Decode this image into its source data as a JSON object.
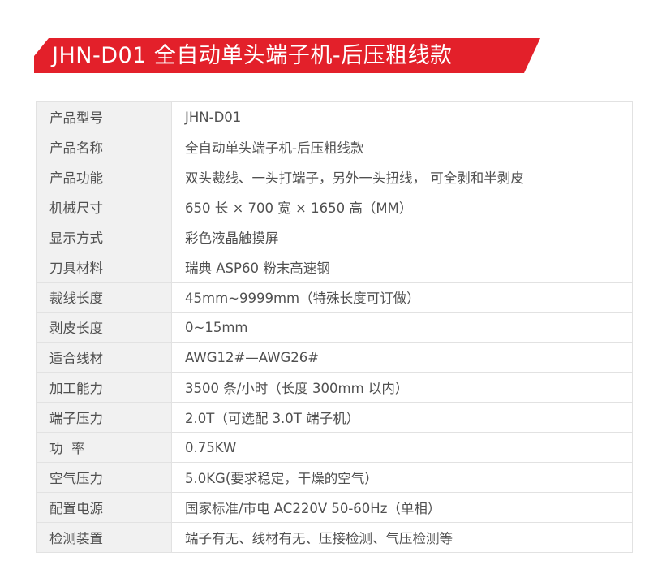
{
  "title": "JHN-D01 全自动单头端子机-后压粗线款",
  "brand_color": "#e3202a",
  "specs": [
    {
      "label": "产品型号",
      "value": "JHN-D01"
    },
    {
      "label": "产品名称",
      "value": "全自动单头端子机-后压粗线款"
    },
    {
      "label": "产品功能",
      "value": "双头裁线、一头打端子，另外一头扭线， 可全剥和半剥皮"
    },
    {
      "label": "机械尺寸",
      "value": "650 长 × 700 宽 × 1650 高（MM）"
    },
    {
      "label": "显示方式",
      "value": "彩色液晶触摸屏"
    },
    {
      "label": "刀具材料",
      "value": "瑞典 ASP60 粉末高速钢"
    },
    {
      "label": "裁线长度",
      "value": "45mm~9999mm（特殊长度可订做）"
    },
    {
      "label": "剥皮长度",
      "value": "0~15mm"
    },
    {
      "label": "适合线材",
      "value": "AWG12#—AWG26#"
    },
    {
      "label": "加工能力",
      "value": "3500 条/小时（长度 300mm 以内）"
    },
    {
      "label": "端子压力",
      "value": "2.0T（可选配 3.0T 端子机）"
    },
    {
      "label": "功  率",
      "value": "0.75KW"
    },
    {
      "label": "空气压力",
      "value": "5.0KG(要求稳定，干燥的空气）"
    },
    {
      "label": "配置电源",
      "value": "国家标准/市电 AC220V 50-60Hz（单相）"
    },
    {
      "label": "检测装置",
      "value": "端子有无、线材有无、压接检测、气压检测等"
    }
  ]
}
